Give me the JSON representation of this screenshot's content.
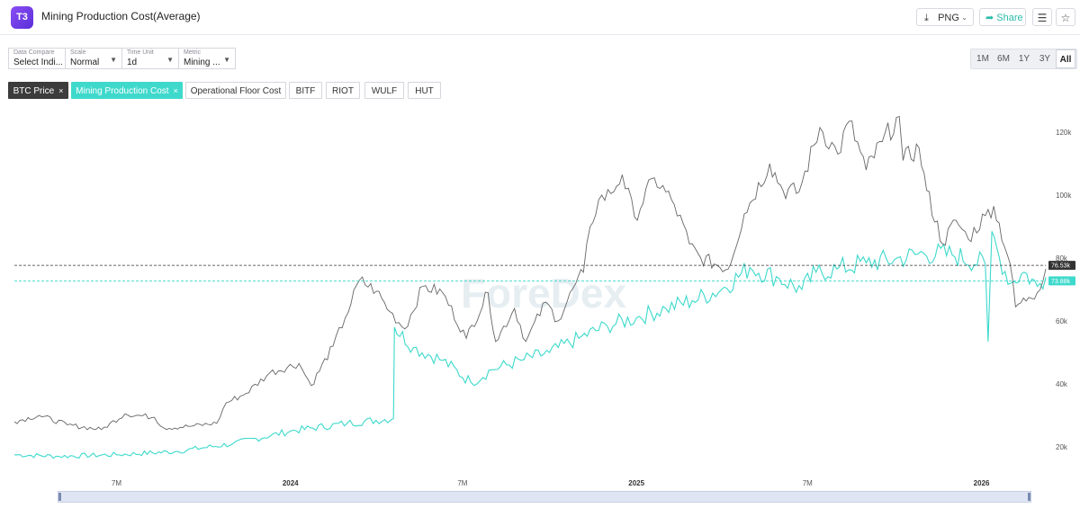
{
  "header": {
    "logo_text": "T3",
    "title": "Mining Production Cost(Average)",
    "png_label": "PNG",
    "share_label": "Share"
  },
  "toolbar": {
    "data_compare": {
      "caption": "Data Compare",
      "value": "Select Indi..."
    },
    "scale": {
      "caption": "Scale",
      "value": "Normal"
    },
    "time_unit": {
      "caption": "Time Unit",
      "value": "1d"
    },
    "metric": {
      "caption": "Metric",
      "value": "Mining ..."
    }
  },
  "ranges": [
    "1M",
    "6M",
    "1Y",
    "3Y",
    "All"
  ],
  "active_range": "All",
  "chips": [
    {
      "label": "BTC Price",
      "style": "dark",
      "closable": true
    },
    {
      "label": "Mining Production Cost",
      "style": "teal",
      "closable": true
    },
    {
      "label": "Operational Floor Cost",
      "style": "plain",
      "closable": false
    },
    {
      "label": "BITF",
      "style": "plain",
      "closable": false
    },
    {
      "label": "RIOT",
      "style": "plain",
      "closable": false
    },
    {
      "label": "WULF",
      "style": "plain",
      "closable": false
    },
    {
      "label": "HUT",
      "style": "plain",
      "closable": false
    }
  ],
  "chart_data": {
    "type": "line",
    "watermark": "ForeDex",
    "x_range": [
      "2023-03-15",
      "2026-03-10"
    ],
    "ylim": [
      10000,
      130000
    ],
    "y_ticks": [
      {
        "value": 20000,
        "label": "20k"
      },
      {
        "value": 40000,
        "label": "40k"
      },
      {
        "value": 60000,
        "label": "60k"
      },
      {
        "value": 80000,
        "label": "80k"
      },
      {
        "value": 100000,
        "label": "100k"
      },
      {
        "value": 120000,
        "label": "120k"
      }
    ],
    "x_ticks": [
      {
        "date": "2023-07-01",
        "label": "7M",
        "bold": false
      },
      {
        "date": "2024-01-01",
        "label": "2024",
        "bold": true
      },
      {
        "date": "2024-07-01",
        "label": "7M",
        "bold": false
      },
      {
        "date": "2025-01-01",
        "label": "2025",
        "bold": true
      },
      {
        "date": "2025-07-01",
        "label": "7M",
        "bold": false
      },
      {
        "date": "2026-01-01",
        "label": "2026",
        "bold": true
      }
    ],
    "last_values": [
      {
        "series": "BTC Price",
        "value": 76530,
        "label": "76.53k",
        "color": "#333333"
      },
      {
        "series": "Mining Production Cost",
        "value": 73880,
        "label": "73.88k",
        "color": "#3dd9cc"
      }
    ],
    "series": [
      {
        "name": "BTC Price",
        "color": "#666666",
        "points": [
          [
            "2023-03-15",
            28000
          ],
          [
            "2023-04-10",
            30000
          ],
          [
            "2023-05-10",
            27000
          ],
          [
            "2023-06-15",
            25500
          ],
          [
            "2023-07-10",
            30500
          ],
          [
            "2023-08-10",
            29400
          ],
          [
            "2023-08-20",
            26000
          ],
          [
            "2023-09-15",
            26500
          ],
          [
            "2023-10-15",
            27500
          ],
          [
            "2023-10-25",
            34000
          ],
          [
            "2023-11-15",
            37000
          ],
          [
            "2023-12-10",
            43500
          ],
          [
            "2024-01-10",
            46500
          ],
          [
            "2024-01-23",
            39500
          ],
          [
            "2024-02-15",
            52000
          ],
          [
            "2024-02-28",
            61000
          ],
          [
            "2024-03-14",
            73000
          ],
          [
            "2024-04-01",
            69500
          ],
          [
            "2024-04-15",
            63000
          ],
          [
            "2024-05-01",
            57500
          ],
          [
            "2024-05-20",
            71000
          ],
          [
            "2024-06-10",
            69000
          ],
          [
            "2024-07-05",
            54500
          ],
          [
            "2024-07-28",
            69000
          ],
          [
            "2024-08-05",
            53500
          ],
          [
            "2024-08-25",
            64000
          ],
          [
            "2024-09-06",
            53500
          ],
          [
            "2024-09-27",
            66000
          ],
          [
            "2024-10-10",
            60000
          ],
          [
            "2024-10-29",
            72000
          ],
          [
            "2024-11-06",
            75500
          ],
          [
            "2024-11-13",
            90000
          ],
          [
            "2024-11-22",
            98500
          ],
          [
            "2024-12-05",
            100500
          ],
          [
            "2024-12-17",
            106500
          ],
          [
            "2024-12-30",
            93000
          ],
          [
            "2025-01-20",
            105500
          ],
          [
            "2025-02-10",
            97000
          ],
          [
            "2025-02-26",
            84500
          ],
          [
            "2025-03-10",
            80000
          ],
          [
            "2025-04-08",
            76500
          ],
          [
            "2025-04-25",
            94000
          ],
          [
            "2025-05-22",
            110000
          ],
          [
            "2025-06-05",
            101500
          ],
          [
            "2025-06-22",
            101000
          ],
          [
            "2025-07-14",
            121500
          ],
          [
            "2025-08-02",
            113000
          ],
          [
            "2025-08-14",
            123500
          ],
          [
            "2025-09-01",
            108000
          ],
          [
            "2025-09-18",
            117000
          ],
          [
            "2025-10-06",
            125000
          ],
          [
            "2025-10-10",
            111000
          ],
          [
            "2025-10-27",
            115000
          ],
          [
            "2025-11-04",
            101500
          ],
          [
            "2025-11-21",
            84500
          ],
          [
            "2025-12-05",
            92000
          ],
          [
            "2025-12-18",
            86000
          ],
          [
            "2026-01-05",
            93500
          ],
          [
            "2026-01-14",
            96500
          ],
          [
            "2026-01-31",
            78500
          ],
          [
            "2026-02-06",
            64500
          ],
          [
            "2026-02-20",
            67500
          ],
          [
            "2026-03-01",
            69000
          ],
          [
            "2026-03-10",
            76530
          ]
        ]
      },
      {
        "name": "Mining Production Cost",
        "color": "#3dd9cc",
        "points": [
          [
            "2023-03-15",
            17500
          ],
          [
            "2023-05-01",
            17000
          ],
          [
            "2023-07-01",
            17500
          ],
          [
            "2023-09-01",
            18500
          ],
          [
            "2023-11-01",
            21000
          ],
          [
            "2024-01-01",
            25000
          ],
          [
            "2024-03-01",
            27500
          ],
          [
            "2024-04-19",
            29000
          ],
          [
            "2024-04-20",
            58000
          ],
          [
            "2024-05-10",
            51500
          ],
          [
            "2024-06-10",
            47500
          ],
          [
            "2024-07-10",
            40500
          ],
          [
            "2024-08-01",
            44500
          ],
          [
            "2024-09-01",
            47500
          ],
          [
            "2024-10-01",
            50000
          ],
          [
            "2024-11-01",
            54500
          ],
          [
            "2024-12-01",
            58500
          ],
          [
            "2025-01-01",
            61000
          ],
          [
            "2025-02-01",
            64000
          ],
          [
            "2025-03-01",
            66500
          ],
          [
            "2025-04-01",
            70000
          ],
          [
            "2025-05-01",
            77000
          ],
          [
            "2025-06-01",
            73500
          ],
          [
            "2025-06-25",
            70000
          ],
          [
            "2025-07-10",
            75500
          ],
          [
            "2025-08-01",
            76500
          ],
          [
            "2025-09-01",
            78500
          ],
          [
            "2025-10-01",
            79500
          ],
          [
            "2025-11-01",
            81500
          ],
          [
            "2025-12-01",
            81000
          ],
          [
            "2026-01-05",
            78000
          ],
          [
            "2026-01-08",
            53500
          ],
          [
            "2026-01-12",
            88500
          ],
          [
            "2026-01-20",
            80000
          ],
          [
            "2026-02-01",
            72000
          ],
          [
            "2026-02-15",
            75500
          ],
          [
            "2026-03-01",
            71000
          ],
          [
            "2026-03-10",
            73880
          ]
        ]
      }
    ]
  }
}
